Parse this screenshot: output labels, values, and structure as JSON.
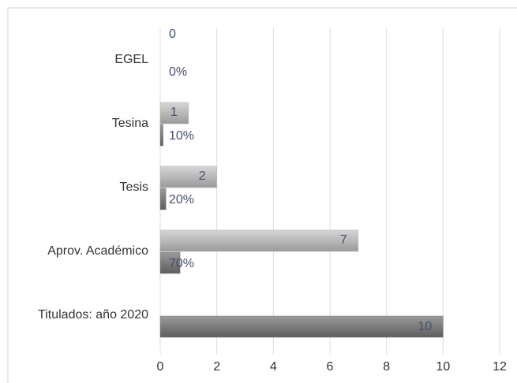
{
  "chart_data": {
    "type": "bar",
    "orientation": "horizontal",
    "categories": [
      "EGEL",
      "Tesina",
      "Tesis",
      "Aprov. Académico",
      "Titulados: año 2020"
    ],
    "series": [
      {
        "color": "#b4b4b4",
        "values": [
          0,
          1,
          2,
          7,
          null
        ]
      },
      {
        "color": "#7a7a7a",
        "values": [
          0,
          0.1,
          0.2,
          0.7,
          10
        ],
        "value_labels": [
          "0%",
          "10%",
          "20%",
          "70%",
          "10"
        ]
      }
    ],
    "xlim": [
      0,
      12
    ],
    "xticks": [
      0,
      2,
      4,
      6,
      8,
      10,
      12
    ],
    "grid": true
  }
}
